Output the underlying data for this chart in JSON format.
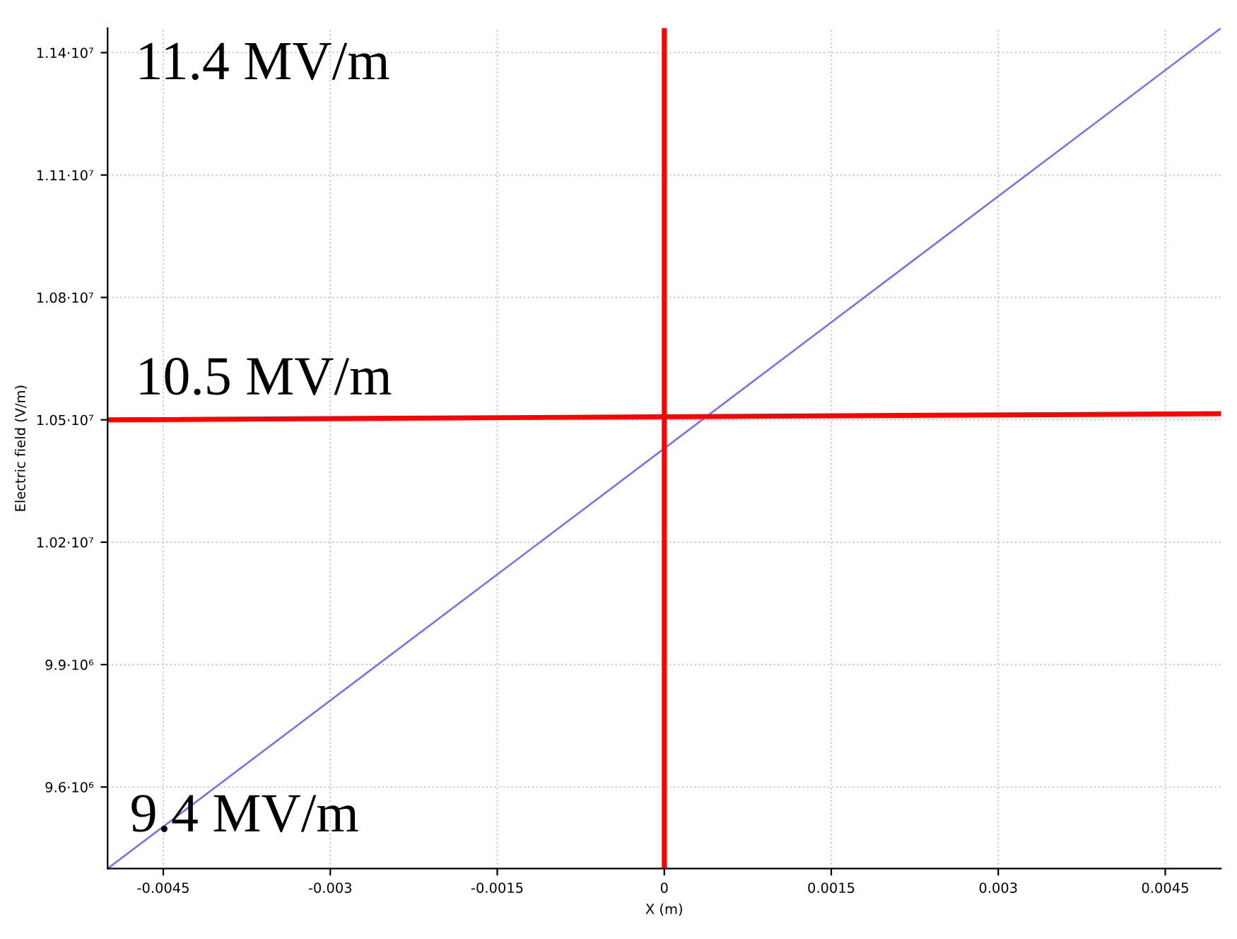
{
  "chart_data": {
    "type": "line",
    "xlabel": "X (m)",
    "ylabel": "Electric field (V/m)",
    "x": [
      -0.005,
      0.005
    ],
    "series": [
      {
        "color": "#7070ff",
        "values": [
          9400000,
          11460000
        ]
      },
      {
        "color": "#ff0000",
        "values": [
          10500000,
          10515000
        ]
      },
      {
        "color": "#ff0000",
        "x": [
          0,
          0
        ],
        "values": [
          9400000,
          11460000
        ]
      }
    ],
    "xlim": [
      -0.005,
      0.005
    ],
    "ylim": [
      9400000,
      11460000
    ],
    "xticks": [
      -0.0045,
      -0.003,
      -0.0015,
      0,
      0.0015,
      0.003,
      0.0045
    ],
    "yticks": [
      {
        "value": 9600000,
        "label": "9.6·10⁶"
      },
      {
        "value": 9900000,
        "label": "9.9·10⁶"
      },
      {
        "value": 10200000,
        "label": "1.02·10⁷"
      },
      {
        "value": 10500000,
        "label": "1.05·10⁷"
      },
      {
        "value": 10800000,
        "label": "1.08·10⁷"
      },
      {
        "value": 11100000,
        "label": "1.11·10⁷"
      },
      {
        "value": 11400000,
        "label": "1.14·10⁷"
      }
    ],
    "annotations": [
      "11.4 MV/m",
      "10.5 MV/m",
      "9.4 MV/m"
    ],
    "grid": true
  }
}
